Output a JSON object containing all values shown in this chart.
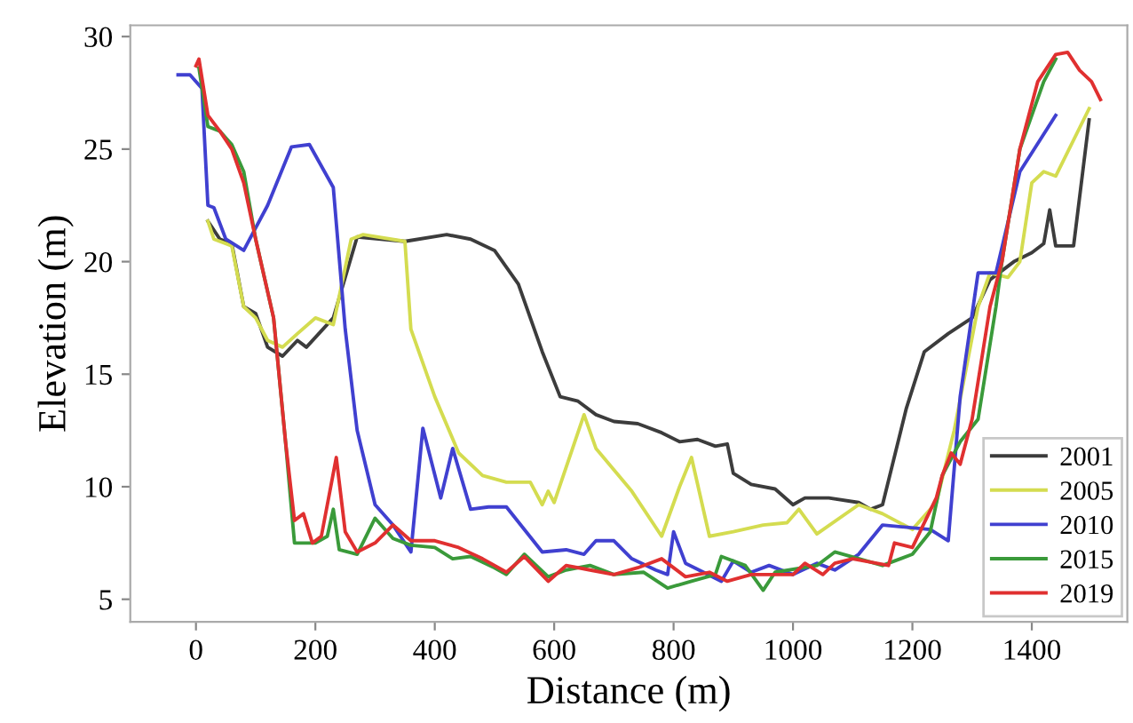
{
  "chart_data": {
    "type": "line",
    "xlabel": "Distance (m)",
    "ylabel": "Elevation (m)",
    "xlim": [
      -110,
      1560
    ],
    "ylim": [
      4,
      30.5
    ],
    "xticks": [
      0,
      200,
      400,
      600,
      800,
      1000,
      1200,
      1400
    ],
    "yticks": [
      5,
      10,
      15,
      20,
      25,
      30
    ],
    "grid": false,
    "legend": "bottom right",
    "marker": "none",
    "line_style": "solid",
    "series": [
      {
        "name": "2001",
        "color": "#3c3c3c",
        "x": [
          20,
          40,
          60,
          80,
          100,
          120,
          145,
          170,
          185,
          230,
          270,
          350,
          420,
          460,
          500,
          540,
          580,
          610,
          640,
          670,
          700,
          740,
          780,
          810,
          840,
          870,
          890,
          900,
          930,
          970,
          1000,
          1020,
          1060,
          1110,
          1130,
          1150,
          1190,
          1220,
          1260,
          1300,
          1330,
          1370,
          1400,
          1420,
          1430,
          1440,
          1470,
          1496
        ],
        "values": [
          21.8,
          21,
          20.8,
          18,
          17.7,
          16.2,
          15.8,
          16.5,
          16.2,
          17.5,
          21.1,
          20.9,
          21.2,
          21,
          20.5,
          19,
          16,
          14,
          13.8,
          13.2,
          12.9,
          12.8,
          12.4,
          12,
          12.1,
          11.8,
          11.9,
          10.6,
          10.1,
          9.9,
          9.2,
          9.5,
          9.5,
          9.3,
          9,
          9.2,
          13.5,
          16,
          16.8,
          17.5,
          19.2,
          20,
          20.4,
          20.8,
          22.3,
          20.7,
          20.7,
          26.3
        ]
      },
      {
        "name": "2005",
        "color": "#d4dc50",
        "x": [
          20,
          30,
          60,
          80,
          100,
          120,
          145,
          170,
          200,
          230,
          260,
          280,
          350,
          360,
          400,
          440,
          480,
          520,
          560,
          580,
          590,
          600,
          650,
          670,
          730,
          780,
          810,
          830,
          860,
          900,
          950,
          990,
          1010,
          1040,
          1110,
          1150,
          1200,
          1240,
          1270,
          1310,
          1330,
          1360,
          1380,
          1400,
          1420,
          1440,
          1496
        ],
        "values": [
          21.8,
          21,
          20.7,
          18,
          17.5,
          16.5,
          16.2,
          16.8,
          17.5,
          17.2,
          21,
          21.2,
          20.9,
          17,
          14,
          11.5,
          10.5,
          10.2,
          10.2,
          9.2,
          9.8,
          9.3,
          13.2,
          11.7,
          9.8,
          7.8,
          10,
          11.3,
          7.8,
          8,
          8.3,
          8.4,
          9,
          7.9,
          9.2,
          8.8,
          8.1,
          9.3,
          12.5,
          18,
          19.5,
          19.3,
          20,
          23.5,
          24,
          23.8,
          26.8
        ]
      },
      {
        "name": "2010",
        "color": "#4040d0",
        "x": [
          -30,
          -10,
          10,
          20,
          30,
          50,
          80,
          120,
          160,
          190,
          230,
          250,
          270,
          300,
          330,
          360,
          380,
          410,
          430,
          460,
          490,
          520,
          580,
          620,
          650,
          670,
          700,
          730,
          770,
          790,
          800,
          820,
          850,
          880,
          900,
          930,
          960,
          1000,
          1040,
          1070,
          1110,
          1150,
          1230,
          1260,
          1280,
          1310,
          1340,
          1380,
          1440
        ],
        "values": [
          28.3,
          28.3,
          27.7,
          22.5,
          22.4,
          21,
          20.5,
          22.5,
          25.1,
          25.2,
          23.3,
          17,
          12.5,
          9.2,
          8.3,
          7.1,
          12.6,
          9.5,
          11.7,
          9,
          9.1,
          9.1,
          7.1,
          7.2,
          7,
          7.6,
          7.6,
          6.8,
          6.3,
          6.1,
          8,
          6.6,
          6.2,
          5.8,
          6.7,
          6.2,
          6.5,
          6.1,
          6.6,
          6.3,
          7,
          8.3,
          8.1,
          7.6,
          14,
          19.5,
          19.5,
          24,
          26.5
        ]
      },
      {
        "name": "2015",
        "color": "#3a9a3a",
        "x": [
          5,
          20,
          40,
          60,
          80,
          100,
          130,
          150,
          165,
          190,
          200,
          220,
          230,
          240,
          270,
          300,
          330,
          360,
          400,
          430,
          460,
          500,
          520,
          550,
          590,
          620,
          660,
          700,
          750,
          790,
          830,
          870,
          880,
          920,
          950,
          970,
          1040,
          1070,
          1150,
          1200,
          1230,
          1250,
          1280,
          1310,
          1340,
          1350,
          1380,
          1420,
          1440
        ],
        "values": [
          28.6,
          26,
          25.8,
          25.2,
          24,
          21,
          17.5,
          12,
          7.5,
          7.5,
          7.5,
          7.8,
          9,
          7.2,
          7,
          8.6,
          7.7,
          7.4,
          7.3,
          6.8,
          6.9,
          6.4,
          6.1,
          7,
          6,
          6.3,
          6.5,
          6.1,
          6.2,
          5.5,
          5.8,
          6.1,
          6.9,
          6.5,
          5.4,
          6.2,
          6.5,
          7.1,
          6.5,
          7,
          8,
          10.5,
          12,
          13,
          18,
          20,
          25,
          28,
          29
        ]
      },
      {
        "name": "2019",
        "color": "#e03030",
        "x": [
          0,
          5,
          20,
          40,
          60,
          80,
          100,
          130,
          150,
          165,
          180,
          195,
          210,
          235,
          250,
          270,
          300,
          330,
          360,
          400,
          440,
          480,
          520,
          550,
          590,
          620,
          660,
          700,
          740,
          780,
          820,
          860,
          890,
          930,
          1000,
          1020,
          1050,
          1070,
          1100,
          1160,
          1170,
          1200,
          1240,
          1250,
          1265,
          1280,
          1300,
          1330,
          1350,
          1380,
          1410,
          1440,
          1460,
          1480,
          1500,
          1515
        ],
        "values": [
          28.7,
          29,
          26.5,
          25.8,
          25,
          23.5,
          21,
          17.5,
          12,
          8.5,
          8.8,
          7.5,
          7.8,
          11.3,
          8,
          7.1,
          7.5,
          8.3,
          7.6,
          7.6,
          7.3,
          6.8,
          6.2,
          6.9,
          5.8,
          6.5,
          6.3,
          6.1,
          6.4,
          6.8,
          6,
          6.2,
          5.8,
          6.1,
          6.1,
          6.6,
          6.1,
          6.6,
          6.8,
          6.5,
          7.5,
          7.3,
          9.5,
          10.5,
          11.5,
          11,
          13,
          18,
          20,
          25,
          28,
          29.2,
          29.3,
          28.5,
          28,
          27.2
        ]
      }
    ]
  }
}
